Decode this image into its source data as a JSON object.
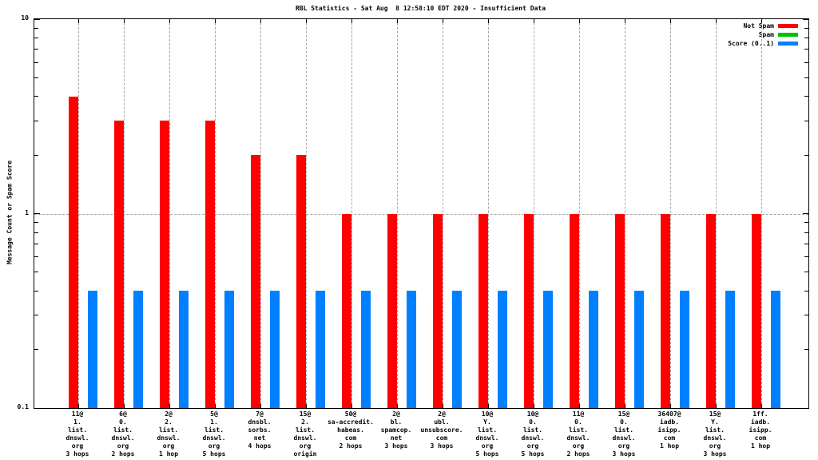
{
  "title": "RBL Statistics - Sat Aug  8 12:58:10 EDT 2020 - Insufficient Data",
  "ylabel": "Message Count or Spam Score",
  "legend": {
    "position": "top-right",
    "entries": [
      {
        "label": "Not Spam",
        "color": "#ff0000"
      },
      {
        "label": "Spam",
        "color": "#00c000"
      },
      {
        "label": "Score (0..1)",
        "color": "#0080ff"
      }
    ]
  },
  "chart_data": {
    "type": "bar",
    "y_scale": "log10",
    "ylim": [
      0.1,
      10
    ],
    "grid": {
      "vertical": true,
      "horizontal_at": [
        1
      ]
    },
    "y_ticks": [
      {
        "value": 10,
        "label": "10"
      },
      {
        "value": 1,
        "label": "1"
      },
      {
        "value": 0.1,
        "label": "0.1"
      }
    ],
    "categories": [
      [
        "11@",
        "1.",
        "list.",
        "dnswl.",
        "org",
        "3 hops"
      ],
      [
        "6@",
        "0.",
        "list.",
        "dnswl.",
        "org",
        "2 hops"
      ],
      [
        "2@",
        "2.",
        "list.",
        "dnswl.",
        "org",
        "1 hop"
      ],
      [
        "5@",
        "1.",
        "list.",
        "dnswl.",
        "org",
        "5 hops"
      ],
      [
        "7@",
        "dnsbl.",
        "sorbs.",
        "net",
        "4 hops"
      ],
      [
        "15@",
        "2.",
        "list.",
        "dnswl.",
        "org",
        "origin"
      ],
      [
        "50@",
        "sa-accredit.",
        "habeas.",
        "com",
        "2 hops"
      ],
      [
        "2@",
        "bl.",
        "spamcop.",
        "net",
        "3 hops"
      ],
      [
        "2@",
        "ubl.",
        "unsubscore.",
        "com",
        "3 hops"
      ],
      [
        "10@",
        "Y.",
        "list.",
        "dnswl.",
        "org",
        "5 hops"
      ],
      [
        "10@",
        "0.",
        "list.",
        "dnswl.",
        "org",
        "5 hops"
      ],
      [
        "11@",
        "0.",
        "list.",
        "dnswl.",
        "org",
        "2 hops"
      ],
      [
        "15@",
        "0.",
        "list.",
        "dnswl.",
        "org",
        "3 hops"
      ],
      [
        "36407@",
        "iadb.",
        "isipp.",
        "com",
        "1 hop"
      ],
      [
        "15@",
        "Y.",
        "list.",
        "dnswl.",
        "org",
        "3 hops"
      ],
      [
        "1ff.",
        "iadb.",
        "isipp.",
        "com",
        "1 hop"
      ]
    ],
    "series": [
      {
        "name": "Not Spam",
        "color": "#ff0000",
        "values": [
          4,
          3,
          3,
          3,
          2,
          2,
          1,
          1,
          1,
          1,
          1,
          1,
          1,
          1,
          1,
          1
        ]
      },
      {
        "name": "Spam",
        "color": "#00c000",
        "values": [
          0,
          0,
          0,
          0,
          0,
          0,
          0,
          0,
          0,
          0,
          0,
          0,
          0,
          0,
          0,
          0
        ]
      },
      {
        "name": "Score (0..1)",
        "color": "#0080ff",
        "values": [
          0.4,
          0.4,
          0.4,
          0.4,
          0.4,
          0.4,
          0.4,
          0.4,
          0.4,
          0.4,
          0.4,
          0.4,
          0.4,
          0.4,
          0.4,
          0.4
        ]
      }
    ]
  }
}
